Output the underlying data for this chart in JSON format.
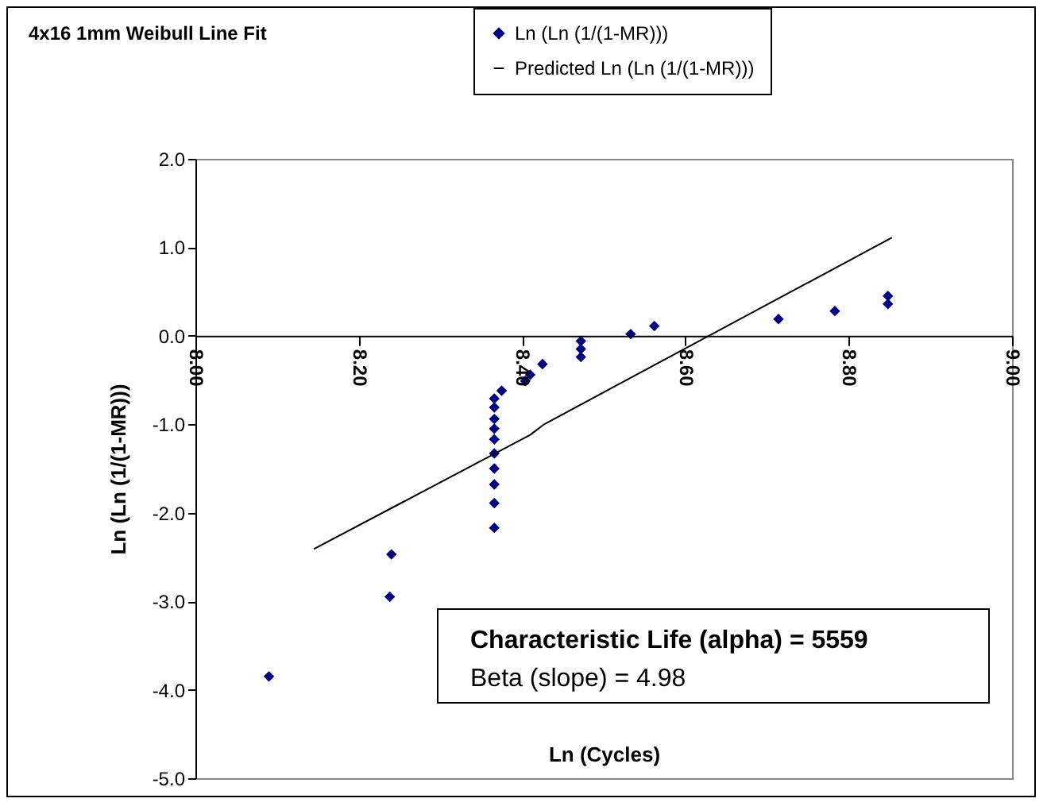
{
  "chart_data": {
    "type": "scatter",
    "title": "4x16 1mm Weibull Line Fit",
    "xlabel": "Ln (Cycles)",
    "ylabel": "Ln (Ln (1/(1-MR)))",
    "annotations": [
      "Characteristic Life (alpha) = 5559",
      "Beta (slope) = 4.98"
    ],
    "legend": "top right",
    "grid": false,
    "xlim": [
      8,
      9
    ],
    "xticks": [
      {
        "value": 8,
        "label": "8.00"
      },
      {
        "value": 8.2,
        "label": "8.20"
      },
      {
        "value": 8.4,
        "label": "8.40"
      },
      {
        "value": 8.6,
        "label": "8.60"
      },
      {
        "value": 8.8,
        "label": "8.80"
      },
      {
        "value": 9,
        "label": "9.00"
      }
    ],
    "ylim": [
      -5,
      2
    ],
    "yticks": [
      {
        "value": -5,
        "label": "-5.0"
      },
      {
        "value": -4,
        "label": "-4.0"
      },
      {
        "value": -3,
        "label": "-3.0"
      },
      {
        "value": -2,
        "label": "-2.0"
      },
      {
        "value": -1,
        "label": "-1.0"
      },
      {
        "value": 0,
        "label": "0.0"
      },
      {
        "value": 1,
        "label": "1.0"
      },
      {
        "value": 2,
        "label": "2.0"
      }
    ],
    "series": [
      {
        "name": "Ln (Ln (1/(1-MR)))",
        "marker": "diamond",
        "color": "#000080",
        "x": [
          8.09,
          8.238,
          8.24,
          8.366,
          8.366,
          8.366,
          8.366,
          8.366,
          8.366,
          8.366,
          8.366,
          8.366,
          8.366,
          8.375,
          8.404,
          8.41,
          8.425,
          8.472,
          8.472,
          8.472,
          8.533,
          8.562,
          8.714,
          8.783,
          8.848,
          8.848
        ],
        "values": [
          -3.85,
          -2.95,
          -2.47,
          -2.17,
          -1.89,
          -1.68,
          -1.5,
          -1.33,
          -1.17,
          -1.05,
          -0.94,
          -0.81,
          -0.71,
          -0.62,
          -0.51,
          -0.44,
          -0.32,
          -0.06,
          -0.15,
          -0.24,
          0.02,
          0.11,
          0.19,
          0.28,
          0.45,
          0.36
        ]
      },
      {
        "name": "Predicted Ln (Ln (1/(1-MR)))",
        "type": "line",
        "color": "#000000",
        "x": [
          8.145,
          8.41,
          8.427,
          8.853
        ],
        "values": [
          -2.41,
          -1.12,
          -1.0,
          1.11
        ]
      }
    ]
  }
}
